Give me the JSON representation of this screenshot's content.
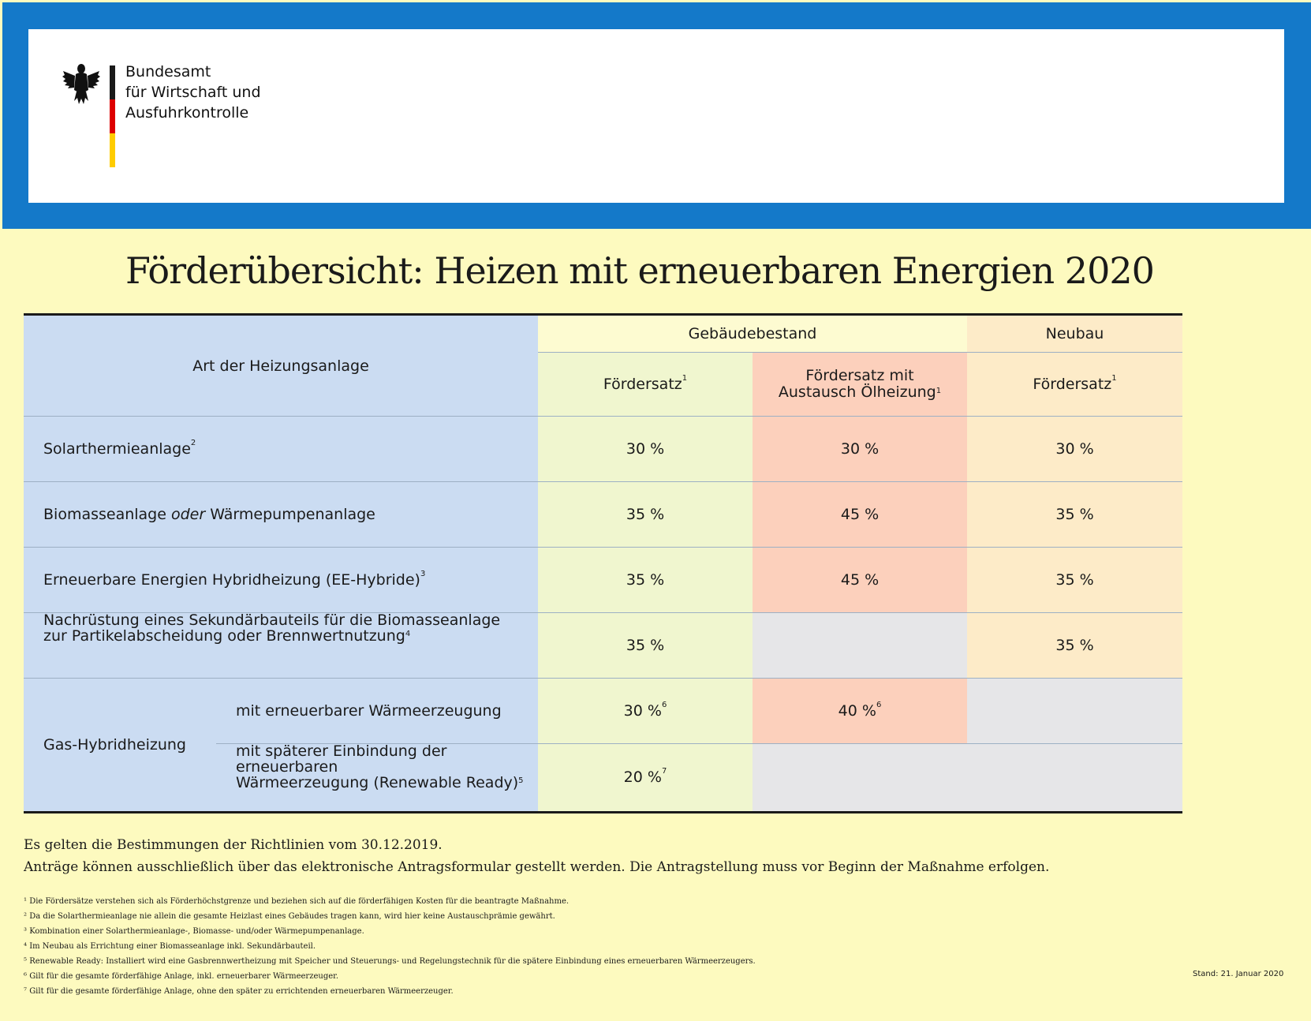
{
  "header": {
    "org_name": "Bundesamt\nfür Wirtschaft und\nAusfuhrkontrolle",
    "flag_colors": [
      "#1a1a1a",
      "#dd0000",
      "#ffcc00"
    ],
    "band_color": "#1479c9"
  },
  "title": "Förderübersicht: Heizen mit erneuerbaren Energien 2020",
  "table": {
    "col_heading": "Art der Heizungsanlage",
    "group_bestand": "Gebäudebestand",
    "group_neubau": "Neubau",
    "sub_foerdersatz": "Fördersatz",
    "sub_foerdersatz_oel_1": "Fördersatz mit",
    "sub_foerdersatz_oel_2": "Austausch Ölheizung",
    "sub_neubau": "Fördersatz",
    "sup1": "1",
    "rows": [
      {
        "label": "Solarthermieanlage",
        "sup": "2",
        "v1": "30 %",
        "v2": "30 %",
        "v3": "30 %"
      },
      {
        "label_a": "Biomasseanlage ",
        "label_em": "oder",
        "label_b": " Wärmepumpenanlage",
        "v1": "35 %",
        "v2": "45 %",
        "v3": "35 %"
      },
      {
        "label": "Erneuerbare Energien Hybridheizung (EE-Hybride)",
        "sup": "3",
        "v1": "35 %",
        "v2": "45 %",
        "v3": "35 %"
      },
      {
        "label_1": "Nachrüstung eines Sekundärbauteils für die Biomasseanlage",
        "label_2": "zur Partikelabscheidung oder Brennwertnutzung",
        "sup": "4",
        "v1": "35 %",
        "v2": "",
        "v3": "35 %"
      }
    ],
    "gas": {
      "label": "Gas-Hybridheizung",
      "sub1": "mit erneuerbarer Wärmeerzeugung",
      "sub1_v1": "30 %",
      "sub1_v1_sup": "6",
      "sub1_v2": "40 %",
      "sub1_v2_sup": "6",
      "sub2_1": "mit späterer Einbindung der erneuerbaren",
      "sub2_2": "Wärmeerzeugung (Renewable Ready)",
      "sub2_sup": "5",
      "sub2_v1": "20 %",
      "sub2_v1_sup": "7"
    }
  },
  "notes": {
    "line1": "Es gelten die Bestimmungen der Richtlinien vom 30.12.2019.",
    "line2": "Anträge können ausschließlich über das elektronische Antragsformular gestellt werden. Die Antragstellung muss vor Beginn der Maßnahme erfolgen."
  },
  "footnotes": [
    "¹ Die Fördersätze verstehen sich als Förderhöchstgrenze und beziehen sich auf die förderfähigen Kosten für die beantragte Maßnahme.",
    "² Da die Solarthermieanlage nie allein die gesamte Heizlast eines Gebäudes tragen kann, wird hier keine Austauschprämie gewährt.",
    "³ Kombination einer Solarthermieanlage-, Biomasse- und/oder Wärmepumpenanlage.",
    "⁴ Im Neubau als Errichtung einer Biomasseanlage inkl. Sekundärbauteil.",
    "⁵ Renewable Ready: Installiert wird eine Gasbrennwertheizung mit Speicher und Steuerungs- und Regelungstechnik für die spätere Einbindung eines erneuerbaren Wärmeerzeugers.",
    "⁶ Gilt für die gesamte förderfähige Anlage, inkl. erneuerbarer Wärmeerzeuger.",
    "⁷ Gilt für die gesamte förderfähige Anlage, ohne den später zu errichtenden erneuerbaren Wärmeerzeuger."
  ],
  "stand": "Stand: 21. Januar 2020"
}
